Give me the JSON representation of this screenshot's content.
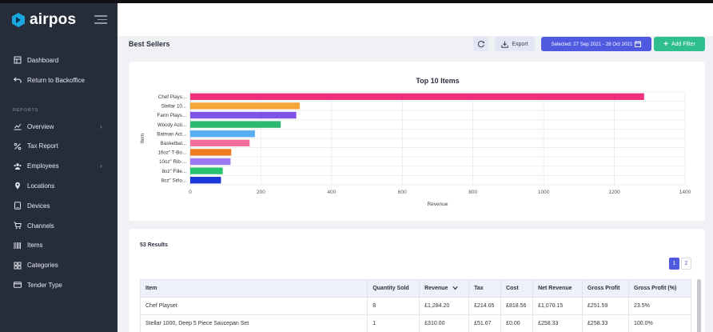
{
  "app": {
    "logo_text": "airpos"
  },
  "sidebar": {
    "items_top": [
      {
        "label": "Dashboard",
        "icon": "dashboard-icon"
      },
      {
        "label": "Return to Backoffice",
        "icon": "return-icon"
      }
    ],
    "section_label": "REPORTS",
    "items_reports": [
      {
        "label": "Overview",
        "icon": "chart-icon",
        "has_chevron": true
      },
      {
        "label": "Tax Report",
        "icon": "percent-icon"
      },
      {
        "label": "Employees",
        "icon": "users-icon",
        "has_chevron": true
      },
      {
        "label": "Locations",
        "icon": "pin-icon"
      },
      {
        "label": "Devices",
        "icon": "tablet-icon"
      },
      {
        "label": "Channels",
        "icon": "cart-icon"
      },
      {
        "label": "Items",
        "icon": "barcode-icon"
      },
      {
        "label": "Categories",
        "icon": "tag-icon"
      },
      {
        "label": "Tender Type",
        "icon": "card-icon"
      }
    ]
  },
  "toolbar": {
    "page_title": "Best Sellers",
    "export_label": "Export",
    "date_label": "Selected: 27 Sep 2021 - 28 Oct 2021",
    "add_filter_label": "Add Filter"
  },
  "chart_data": {
    "type": "bar",
    "orientation": "horizontal",
    "title": "Top 10 Items",
    "xlabel": "Revenue",
    "ylabel": "Item",
    "xlim": [
      0,
      1400
    ],
    "xticks": [
      0,
      200,
      400,
      600,
      800,
      1000,
      1200,
      1400
    ],
    "grid": true,
    "categories": [
      "Chef Plays...",
      "Stellar 10...",
      "Farm Plays...",
      "Woody Acti...",
      "Batman Act...",
      "Basketbal...",
      "16oz\" T-Bo...",
      "10oz\" Rib-...",
      "8oz\" Fille...",
      "8oz\" Sirlo..."
    ],
    "values": [
      1284.2,
      310,
      300,
      256,
      183,
      168,
      116,
      114,
      92,
      87
    ],
    "colors": [
      "#f0307c",
      "#f5a63b",
      "#7f52e8",
      "#2cb86f",
      "#58aef2",
      "#f46e9a",
      "#ef7a22",
      "#9b78f2",
      "#28c46d",
      "#1a38d6"
    ]
  },
  "results": {
    "count_label": "53 Results",
    "pages": [
      "1",
      "2"
    ],
    "columns": [
      "Item",
      "Quantity Sold",
      "Revenue",
      "Tax",
      "Cost",
      "Net Revenue",
      "Gross Profit",
      "Gross Profit (%)"
    ],
    "rows": [
      [
        "Chef Playset",
        "8",
        "£1,284.20",
        "£214.05",
        "£818.56",
        "£1,070.15",
        "£251.59",
        "23.5%"
      ],
      [
        "Stellar 1000, Deep 5 Piece Saucepan Set",
        "1",
        "£310.00",
        "£51.67",
        "£0.00",
        "£258.33",
        "£258.33",
        "100.0%"
      ]
    ]
  }
}
